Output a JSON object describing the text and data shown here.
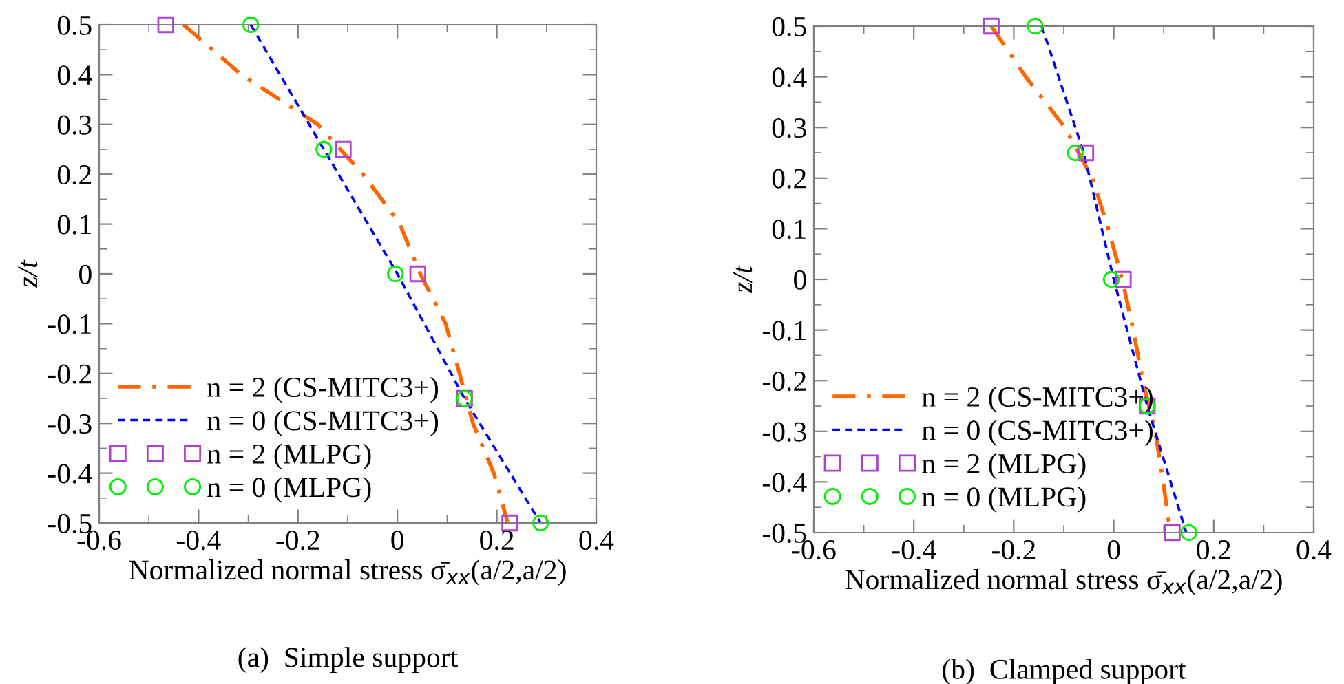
{
  "chart_data": [
    {
      "type": "line",
      "xlabel": "Normalized normal stress σ̄$_{xx}$(a/2,a/2)",
      "ylabel": "z/t",
      "annotations": [
        "(a)  Simple support"
      ],
      "xlim": [
        -0.6,
        0.4
      ],
      "xticks": [
        -0.6,
        -0.4,
        -0.2,
        0,
        0.2,
        0.4
      ],
      "ylim": [
        -0.5,
        0.5
      ],
      "yticks": [
        -0.5,
        -0.4,
        -0.3,
        -0.2,
        -0.1,
        0,
        0.1,
        0.2,
        0.3,
        0.4,
        0.5
      ],
      "grid": false,
      "legend": "bottom left",
      "series": [
        {
          "name": "n = 2 (CS-MITC3+)",
          "color": "#ff6600",
          "line_style": "dashdot",
          "marker": "none",
          "x": [
            -0.43,
            -0.314,
            -0.16,
            -0.115,
            -0.069,
            0.005,
            0.046,
            0.097,
            0.125,
            0.152,
            0.194,
            0.222
          ],
          "values": [
            0.5,
            0.4,
            0.3,
            0.25,
            0.2,
            0.1,
            0,
            -0.1,
            -0.2,
            -0.3,
            -0.4,
            -0.5
          ]
        },
        {
          "name": "n = 0 (CS-MITC3+)",
          "color": "#0000ff",
          "line_style": "dashed",
          "marker": "none",
          "x": [
            -0.295,
            -0.148,
            0,
            0.135,
            0.288
          ],
          "values": [
            0.5,
            0.25,
            0,
            -0.25,
            -0.5
          ]
        },
        {
          "name": "n = 2 (MLPG)",
          "type": "scatter",
          "color": "#b040d0",
          "marker": "square",
          "x": [
            -0.466,
            -0.109,
            0.041,
            0.135,
            0.226
          ],
          "values": [
            0.5,
            0.25,
            0,
            -0.25,
            -0.5
          ]
        },
        {
          "name": "n = 0 (MLPG)",
          "type": "scatter",
          "color": "#00ee00",
          "marker": "circle",
          "x": [
            -0.295,
            -0.148,
            -0.004,
            0.135,
            0.288
          ],
          "values": [
            0.5,
            0.25,
            0,
            -0.25,
            -0.5
          ]
        }
      ]
    },
    {
      "type": "line",
      "xlabel": "Normalized normal stress σ̄$_{xx}$(a/2,a/2)",
      "ylabel": "z/t",
      "annotations": [
        "(b)  Clamped support"
      ],
      "xlim": [
        -0.6,
        0.4
      ],
      "xticks": [
        -0.6,
        -0.4,
        -0.2,
        0,
        0.2,
        0.4
      ],
      "ylim": [
        -0.5,
        0.5
      ],
      "yticks": [
        -0.5,
        -0.4,
        -0.3,
        -0.2,
        -0.1,
        0,
        0.1,
        0.2,
        0.3,
        0.4,
        0.5
      ],
      "grid": false,
      "legend": "bottom left",
      "series": [
        {
          "name": "n = 2 (CS-MITC3+)",
          "color": "#ff6600",
          "line_style": "dashdot",
          "marker": "none",
          "x": [
            -0.245,
            -0.176,
            -0.098,
            -0.043,
            -0.011,
            0.017,
            0.039,
            0.058,
            0.083,
            0.099,
            0.113
          ],
          "values": [
            0.5,
            0.4,
            0.3,
            0.2,
            0.1,
            0,
            -0.1,
            -0.2,
            -0.3,
            -0.4,
            -0.5
          ]
        },
        {
          "name": "n = 0 (CS-MITC3+)",
          "color": "#0000ff",
          "line_style": "dashed",
          "marker": "none",
          "x": [
            -0.144,
            -0.06,
            0,
            0.067,
            0.145
          ],
          "values": [
            0.5,
            0.25,
            0,
            -0.25,
            -0.5
          ]
        },
        {
          "name": "n = 2 (MLPG)",
          "type": "scatter",
          "color": "#b040d0",
          "marker": "square",
          "x": [
            -0.245,
            -0.056,
            0.019,
            0.067,
            0.117
          ],
          "values": [
            0.5,
            0.25,
            0,
            -0.25,
            -0.5
          ]
        },
        {
          "name": "n = 0 (MLPG)",
          "type": "scatter",
          "color": "#00ee00",
          "marker": "circle",
          "x": [
            -0.157,
            -0.077,
            -0.005,
            0.067,
            0.15
          ],
          "values": [
            0.5,
            0.25,
            0,
            -0.25,
            -0.5
          ]
        }
      ]
    }
  ]
}
